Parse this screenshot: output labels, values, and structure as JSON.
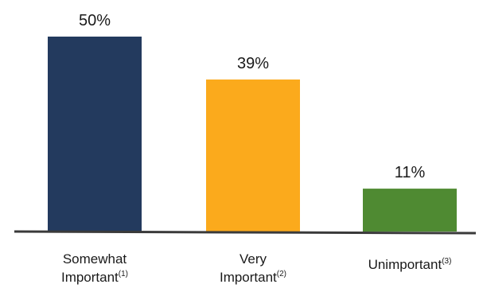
{
  "chart_data": {
    "type": "bar",
    "categories": [
      {
        "lines": [
          "Somewhat",
          "Important"
        ],
        "footnote": "(1)"
      },
      {
        "lines": [
          "Very",
          "Important"
        ],
        "footnote": "(2)"
      },
      {
        "lines": [
          "Unimportant"
        ],
        "footnote": "(3)"
      }
    ],
    "values": [
      50,
      39,
      11
    ],
    "value_labels": [
      "50%",
      "39%",
      "11%"
    ],
    "colors": [
      "#233a5e",
      "#fbaa1c",
      "#4f8a32"
    ],
    "ylim": [
      0,
      55
    ],
    "grid": false,
    "legend": "none"
  }
}
